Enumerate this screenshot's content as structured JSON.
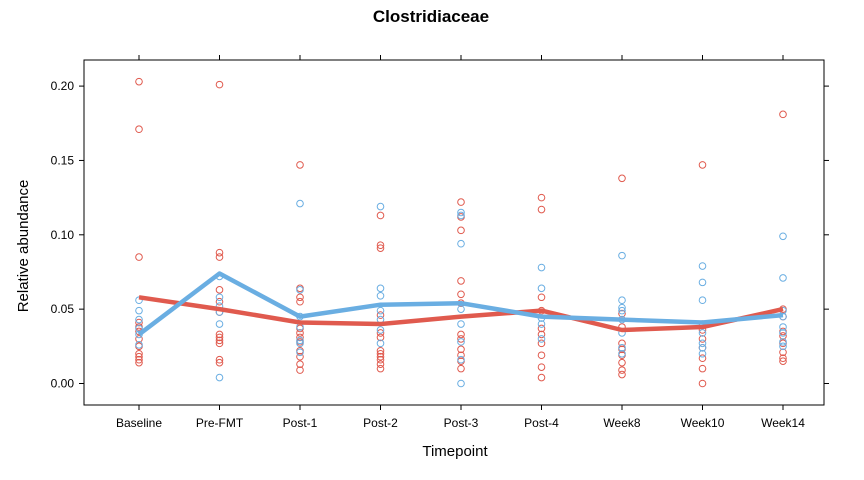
{
  "chart_data": {
    "type": "line",
    "title": "Clostridiaceae",
    "xlabel": "Timepoint",
    "ylabel": "Relative abundance",
    "categories": [
      "Baseline",
      "Pre-FMT",
      "Post-1",
      "Post-2",
      "Post-3",
      "Post-4",
      "Week8",
      "Week10",
      "Week14"
    ],
    "ylim": [
      -0.015,
      0.215
    ],
    "yticks": [
      0.0,
      0.05,
      0.1,
      0.15,
      0.2
    ],
    "ytick_labels": [
      "0.00",
      "0.05",
      "0.10",
      "0.15",
      "0.20"
    ],
    "grid": false,
    "series": [
      {
        "group": "red",
        "color": "#e05a4e",
        "line": [
          0.058,
          0.05,
          0.041,
          0.04,
          0.045,
          0.049,
          0.036,
          0.038,
          0.05
        ],
        "points": [
          [
            0.203,
            0.171,
            0.085,
            0.041,
            0.038,
            0.035,
            0.03,
            0.025,
            0.02,
            0.018,
            0.016,
            0.014
          ],
          [
            0.201,
            0.088,
            0.085,
            0.063,
            0.055,
            0.048,
            0.033,
            0.031,
            0.029,
            0.027,
            0.016,
            0.014
          ],
          [
            0.147,
            0.064,
            0.058,
            0.055,
            0.037,
            0.034,
            0.031,
            0.028,
            0.022,
            0.018,
            0.013,
            0.009
          ],
          [
            0.113,
            0.093,
            0.091,
            0.046,
            0.034,
            0.031,
            0.022,
            0.02,
            0.018,
            0.016,
            0.013,
            0.01
          ],
          [
            0.122,
            0.112,
            0.103,
            0.069,
            0.06,
            0.054,
            0.033,
            0.03,
            0.023,
            0.019,
            0.015,
            0.01
          ],
          [
            0.125,
            0.117,
            0.058,
            0.049,
            0.037,
            0.033,
            0.027,
            0.019,
            0.011,
            0.004
          ],
          [
            0.138,
            0.047,
            0.038,
            0.027,
            0.023,
            0.019,
            0.014,
            0.009,
            0.006
          ],
          [
            0.147,
            0.04,
            0.036,
            0.03,
            0.024,
            0.017,
            0.01,
            0.0
          ],
          [
            0.181,
            0.05,
            0.045,
            0.035,
            0.032,
            0.027,
            0.021,
            0.017,
            0.015
          ]
        ]
      },
      {
        "group": "blue",
        "color": "#6aaee2",
        "line": [
          0.033,
          0.074,
          0.045,
          0.053,
          0.054,
          0.045,
          0.043,
          0.041,
          0.046
        ],
        "points": [
          [
            0.056,
            0.049,
            0.043,
            0.037,
            0.033,
            0.026
          ],
          [
            0.072,
            0.058,
            0.052,
            0.048,
            0.04,
            0.004
          ],
          [
            0.121,
            0.063,
            0.045,
            0.038,
            0.029,
            0.027,
            0.021
          ],
          [
            0.119,
            0.064,
            0.059,
            0.049,
            0.043,
            0.036,
            0.027
          ],
          [
            0.115,
            0.113,
            0.094,
            0.05,
            0.04,
            0.028,
            0.016,
            0.0
          ],
          [
            0.078,
            0.064,
            0.044,
            0.04,
            0.03
          ],
          [
            0.086,
            0.056,
            0.051,
            0.049,
            0.043,
            0.034,
            0.024,
            0.02
          ],
          [
            0.079,
            0.068,
            0.056,
            0.034,
            0.027,
            0.024,
            0.02
          ],
          [
            0.099,
            0.071,
            0.049,
            0.045,
            0.038,
            0.034,
            0.028,
            0.025
          ]
        ]
      }
    ]
  }
}
